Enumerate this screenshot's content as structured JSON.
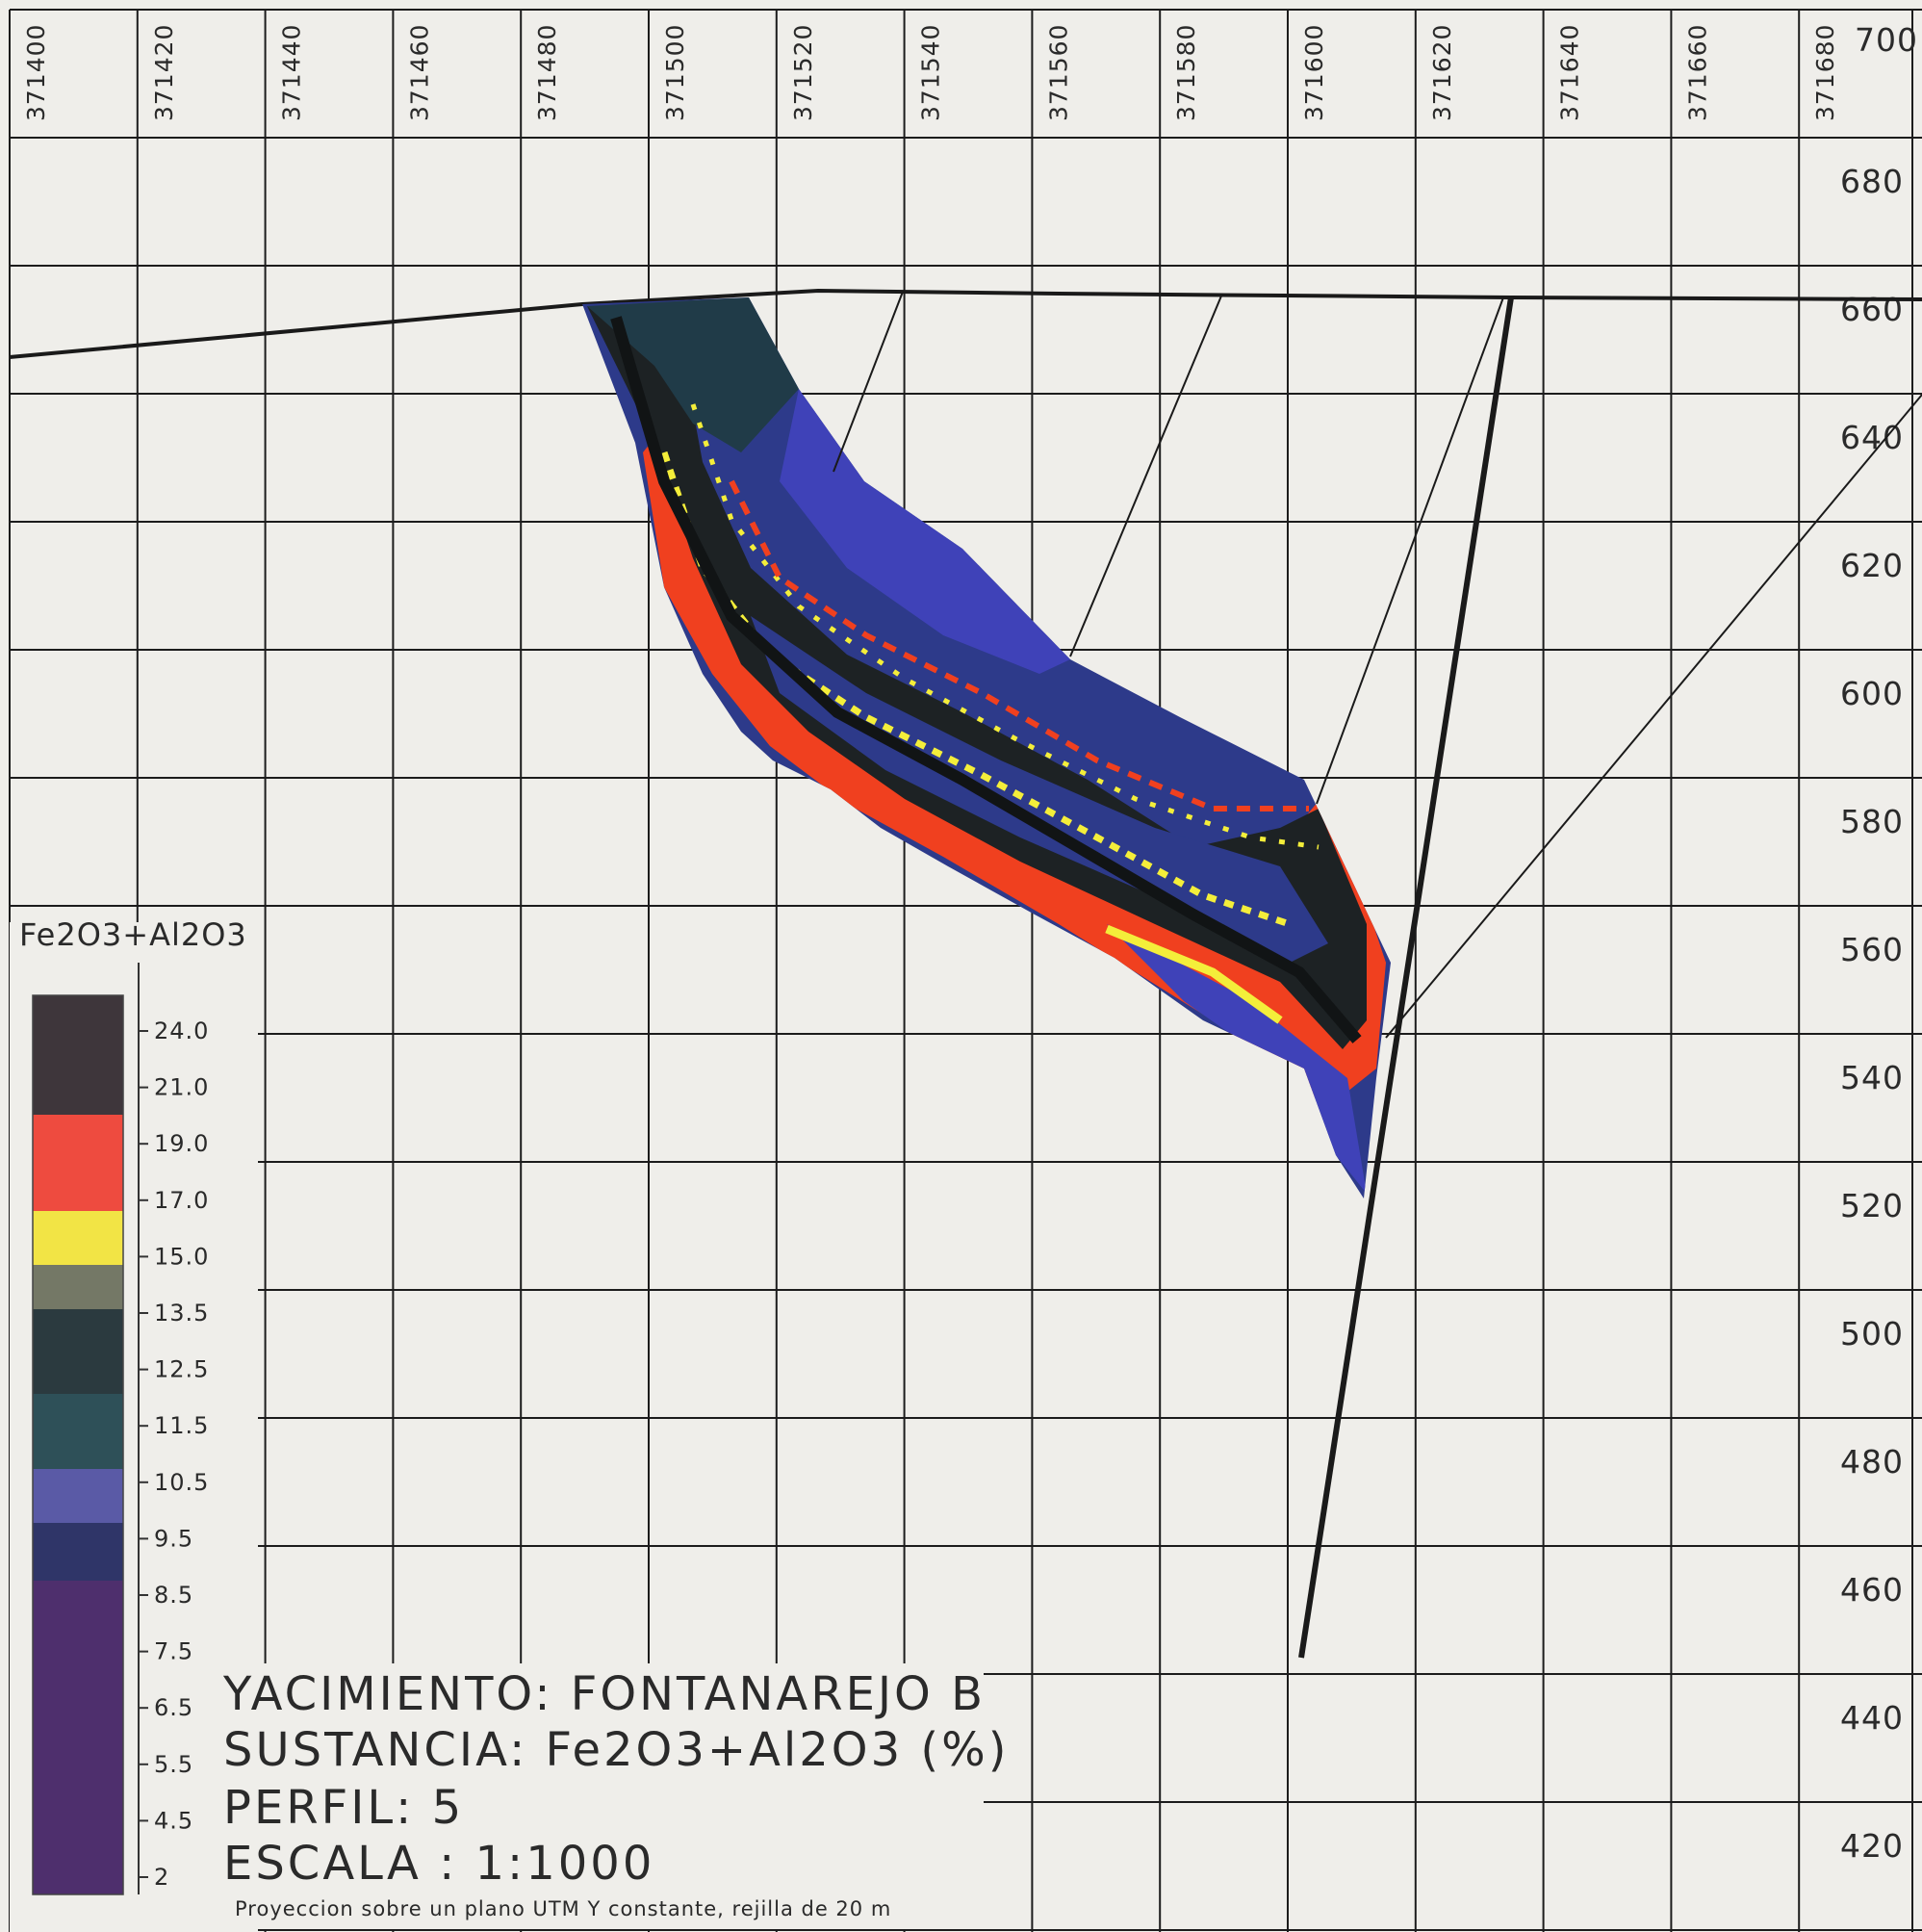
{
  "map": {
    "x_labels": [
      "371400",
      "371420",
      "371440",
      "371460",
      "371480",
      "371500",
      "371520",
      "371540",
      "371560",
      "371580",
      "371600",
      "371620",
      "371640",
      "371660",
      "371680"
    ],
    "y_labels": [
      "700",
      "680",
      "660",
      "640",
      "620",
      "600",
      "580",
      "560",
      "540",
      "520",
      "500",
      "480",
      "460",
      "440",
      "420"
    ],
    "legend": {
      "title": "Fe2O3+Al2O3",
      "ticks": [
        "24.0",
        "21.0",
        "19.0",
        "17.0",
        "15.0",
        "13.5",
        "12.5",
        "11.5",
        "10.5",
        "9.5",
        "8.5",
        "7.5",
        "6.5",
        "5.5",
        "4.5",
        "2"
      ],
      "bands": [
        {
          "upper": "24.0",
          "color": "#3e363b"
        },
        {
          "upper": "19.0",
          "color": "#ee4b3f"
        },
        {
          "upper": "15.0",
          "color": "#f2e445"
        },
        {
          "upper": "13.5",
          "color": "#747866"
        },
        {
          "upper": "12.5",
          "color": "#2b3a3f"
        },
        {
          "upper": "10.5",
          "color": "#2e5058"
        },
        {
          "upper": "9.5",
          "color": "#5a5aa6"
        },
        {
          "upper": "7.5",
          "color": "#2f3568"
        },
        {
          "upper": "4.5",
          "color": "#4e2f6d"
        }
      ]
    },
    "title_block": {
      "yacimiento": "YACIMIENTO: FONTANAREJO B",
      "sustancia": "SUSTANCIA: Fe2O3+Al2O3 (%)",
      "perfil": "PERFIL: 5",
      "escala": "ESCALA : 1:1000",
      "nota": "Proyeccion sobre un plano UTM Y constante, rejilla de 20 m"
    },
    "colors": {
      "background": "#efeeea",
      "grid": "#1c1c1c",
      "black": "#1d2224",
      "dark_blue": "#2d3a8a",
      "blue": "#3f42b8",
      "red": "#f0401f",
      "yellow": "#f4ee3a",
      "teal": "#203b48"
    }
  }
}
